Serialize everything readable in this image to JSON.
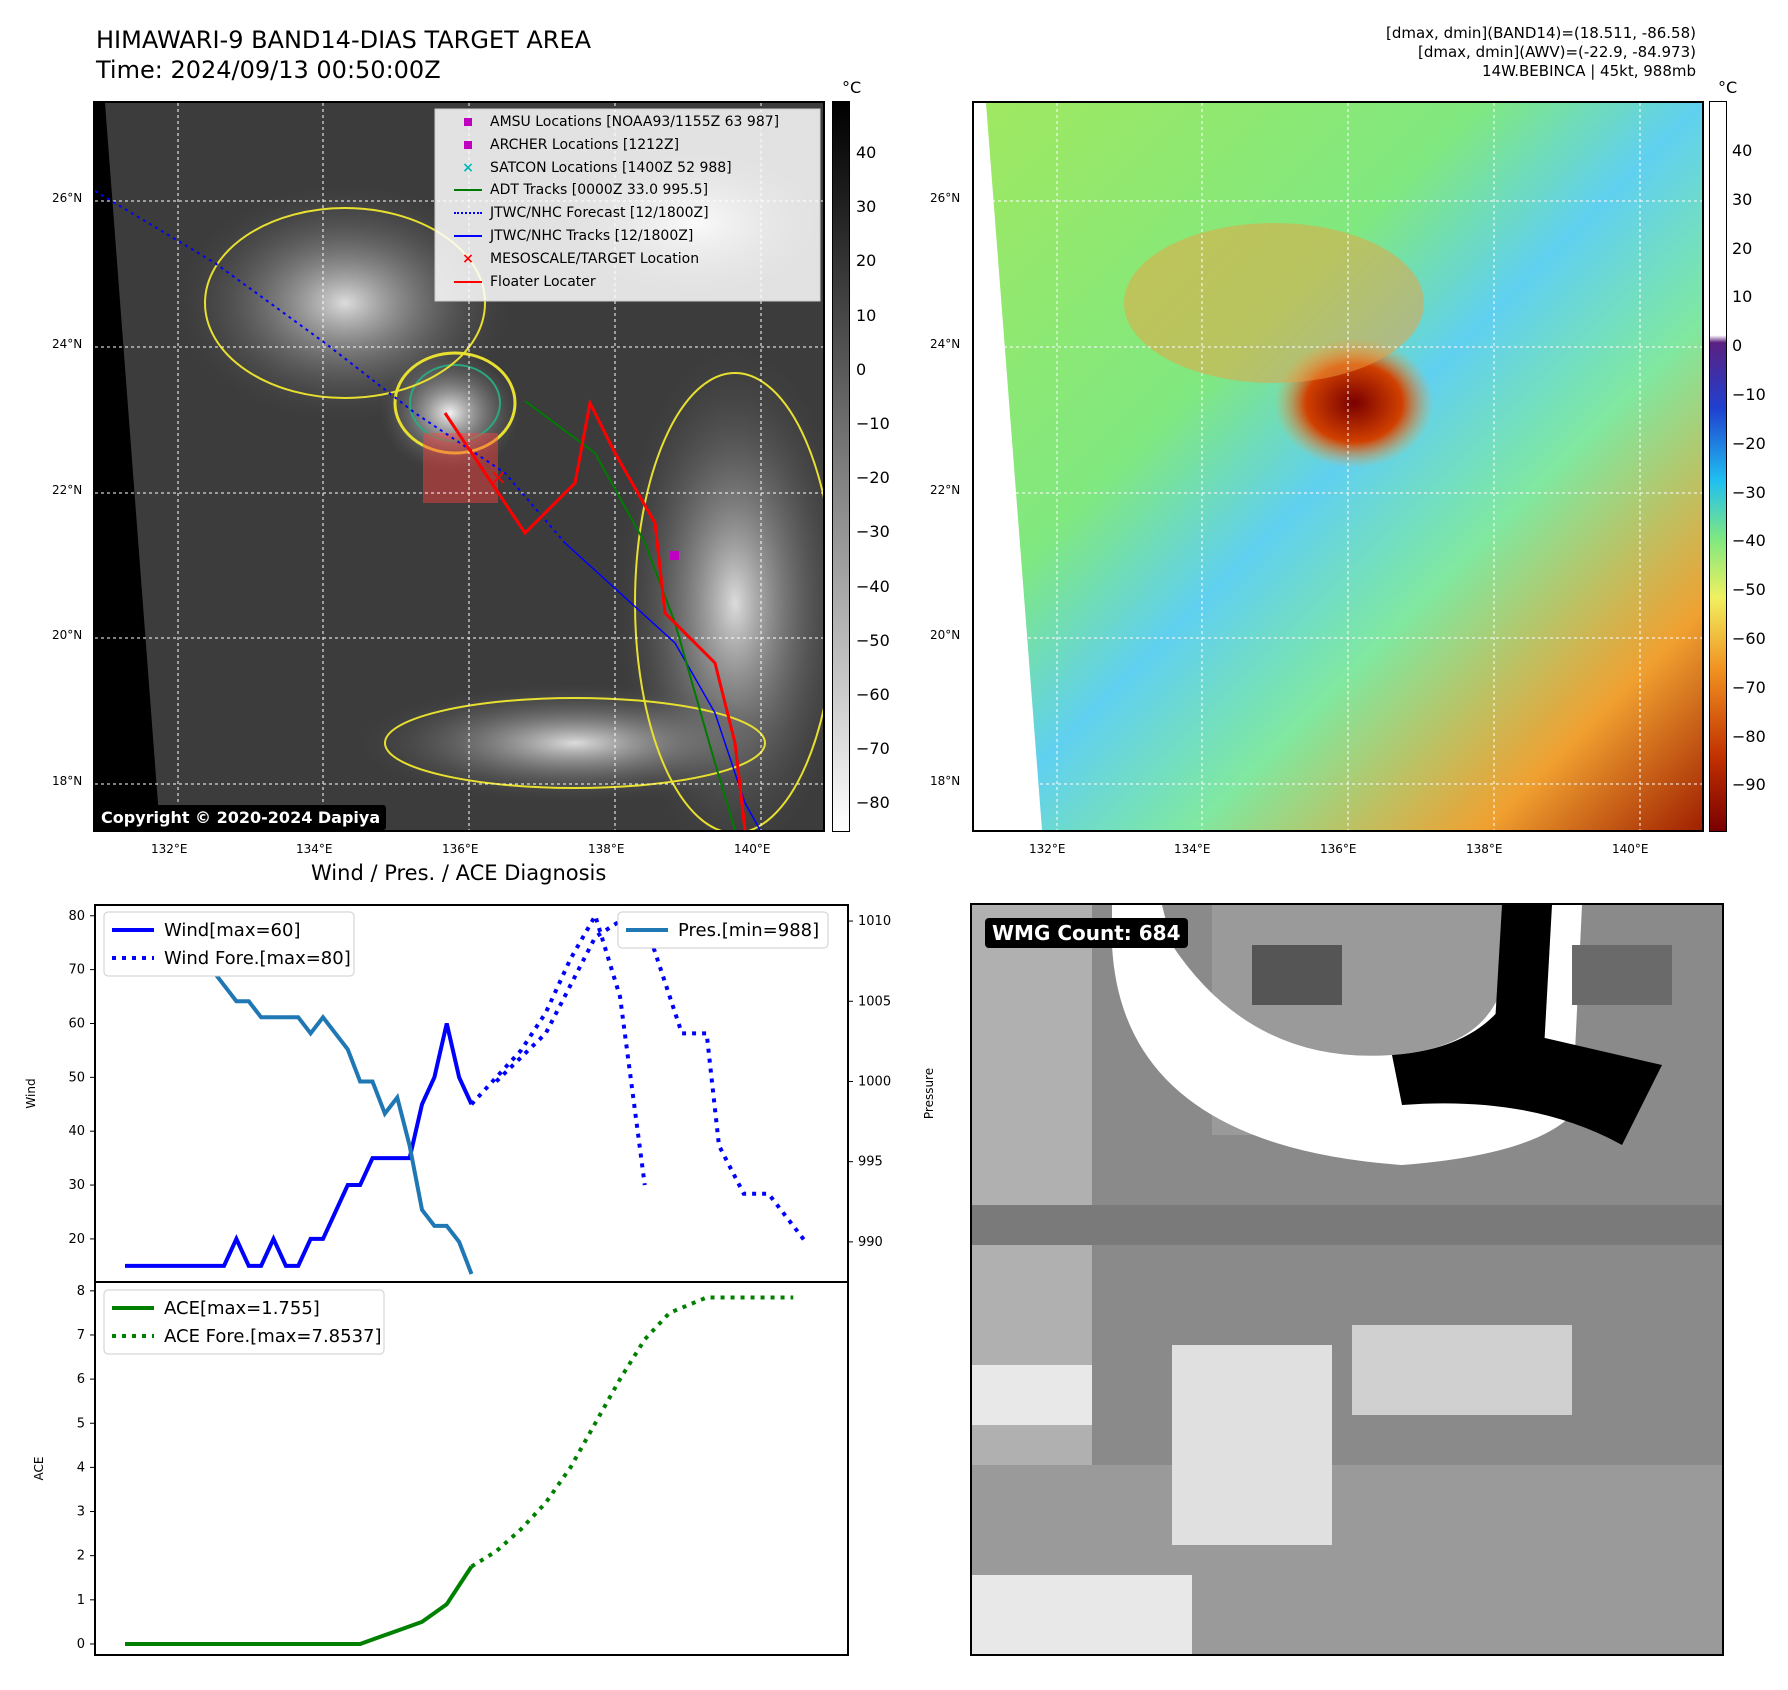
{
  "header": {
    "title_line1": "HIMAWARI-9 BAND14-DIAS TARGET AREA",
    "title_line2": "Time: 2024/09/13 00:50:00Z",
    "info_line1": "[dmax, dmin](BAND14)=(18.511, -86.58)",
    "info_line2": "[dmax, dmin](AWV)=(-22.9, -84.973)",
    "info_line3": "14W.BEBINCA | 45kt, 988mb"
  },
  "map_axes": {
    "lat_labels": [
      "26°N",
      "24°N",
      "22°N",
      "20°N",
      "18°N"
    ],
    "lon_labels": [
      "132°E",
      "134°E",
      "136°E",
      "138°E",
      "140°E"
    ]
  },
  "colorbar_left": {
    "unit": "°C",
    "ticks": [
      "40",
      "30",
      "20",
      "10",
      "0",
      "−10",
      "−20",
      "−30",
      "−40",
      "−50",
      "−60",
      "−70",
      "−80"
    ]
  },
  "colorbar_right": {
    "unit": "°C",
    "ticks": [
      "40",
      "30",
      "20",
      "10",
      "0",
      "−10",
      "−20",
      "−30",
      "−40",
      "−50",
      "−60",
      "−70",
      "−80",
      "−90"
    ]
  },
  "copyright": "Copyright © 2020-2024 Dapiya",
  "legend_map": [
    {
      "label": "AMSU Locations [NOAA93/1155Z 63 987]",
      "marker": "square",
      "color": "#c000c0"
    },
    {
      "label": "ARCHER Locations [1212Z]",
      "marker": "square",
      "color": "#c000c0"
    },
    {
      "label": "SATCON Locations [1400Z 52 988]",
      "marker": "x",
      "color": "#00b8b8"
    },
    {
      "label": "ADT Tracks [0000Z 33.0 995.5]",
      "marker": "line",
      "color": "#007a00"
    },
    {
      "label": "JTWC/NHC Forecast [12/1800Z]",
      "marker": "dotted",
      "color": "#0000ff"
    },
    {
      "label": "JTWC/NHC Tracks [12/1800Z]",
      "marker": "linedot",
      "color": "#0000ff"
    },
    {
      "label": "MESOSCALE/TARGET Location",
      "marker": "x",
      "color": "#ff0000"
    },
    {
      "label": "Floater Locater",
      "marker": "line",
      "color": "#ff0000"
    }
  ],
  "diag_title": "Wind / Pres. / ACE Diagnosis",
  "wmg_label": "WMG Count: 684",
  "chart_data": [
    {
      "type": "line",
      "title": "Wind / Pres. / ACE Diagnosis",
      "ylabel": "Wind",
      "ylabel_right": "Pressure",
      "ylim": [
        12,
        82
      ],
      "ylim_right": [
        987.5,
        1011
      ],
      "yticks": [
        "80",
        "70",
        "60",
        "50",
        "40",
        "30",
        "20"
      ],
      "yticks_right": [
        "1010",
        "1005",
        "1000",
        "995",
        "990"
      ],
      "series": [
        {
          "name": "Wind[max=60]",
          "style": "solid",
          "color": "#0000ff",
          "axis": "left",
          "x": [
            0,
            1,
            2,
            3,
            4,
            5,
            6,
            7,
            8,
            9,
            10,
            11,
            12,
            13,
            14,
            15,
            16,
            17,
            18,
            19,
            20,
            21,
            22,
            23,
            24,
            25,
            26,
            27,
            28
          ],
          "values": [
            15,
            15,
            15,
            15,
            15,
            15,
            15,
            15,
            15,
            20,
            15,
            15,
            20,
            15,
            15,
            20,
            20,
            25,
            30,
            30,
            35,
            35,
            35,
            35,
            45,
            50,
            60,
            50,
            45
          ]
        },
        {
          "name": "Wind Fore.[max=80]",
          "style": "dotted",
          "color": "#0000ff",
          "axis": "left",
          "x": [
            28,
            30,
            32,
            34,
            36,
            38,
            40,
            42
          ],
          "values": [
            45,
            50,
            55,
            62,
            72,
            80,
            65,
            30
          ]
        },
        {
          "name": "Pres.[min=988]",
          "style": "solid",
          "color": "#1f77b4",
          "axis": "right",
          "x": [
            0,
            1,
            2,
            3,
            4,
            5,
            6,
            7,
            8,
            9,
            10,
            11,
            12,
            13,
            14,
            15,
            16,
            17,
            18,
            19,
            20,
            21,
            22,
            23,
            24,
            25,
            26,
            27,
            28
          ],
          "values": [
            1010,
            1008,
            1008,
            1008,
            1009,
            1009,
            1007,
            1007,
            1006,
            1005,
            1005,
            1004,
            1004,
            1004,
            1004,
            1003,
            1004,
            1003,
            1002,
            1000,
            1000,
            998,
            999,
            996,
            992,
            991,
            991,
            990,
            988
          ]
        },
        {
          "name": "",
          "style": "dotted",
          "color": "#0000ff",
          "axis": "right",
          "x": [
            30,
            34,
            36,
            38,
            40,
            42,
            45,
            47,
            48,
            50,
            52,
            55
          ],
          "values": [
            1000,
            1003,
            1006,
            1009,
            1010,
            1010,
            1003,
            1003,
            996,
            993,
            993,
            990
          ]
        }
      ]
    },
    {
      "type": "line",
      "ylabel": "ACE",
      "ylim": [
        -0.25,
        8.2
      ],
      "yticks": [
        "8",
        "7",
        "6",
        "5",
        "4",
        "3",
        "2",
        "1",
        "0"
      ],
      "series": [
        {
          "name": "ACE[max=1.755]",
          "style": "solid",
          "color": "#008000",
          "x": [
            0,
            4,
            8,
            12,
            16,
            19,
            22,
            24,
            26,
            28
          ],
          "values": [
            0,
            0,
            0,
            0,
            0,
            0,
            0.3,
            0.5,
            0.9,
            1.755
          ]
        },
        {
          "name": "ACE Fore.[max=7.8537]",
          "style": "dotted",
          "color": "#008000",
          "x": [
            28,
            30,
            32,
            34,
            36,
            38,
            40,
            42,
            44,
            47,
            50,
            54
          ],
          "values": [
            1.755,
            2.1,
            2.6,
            3.2,
            4.0,
            5.0,
            6.0,
            6.9,
            7.5,
            7.85,
            7.85,
            7.85
          ]
        }
      ]
    }
  ]
}
